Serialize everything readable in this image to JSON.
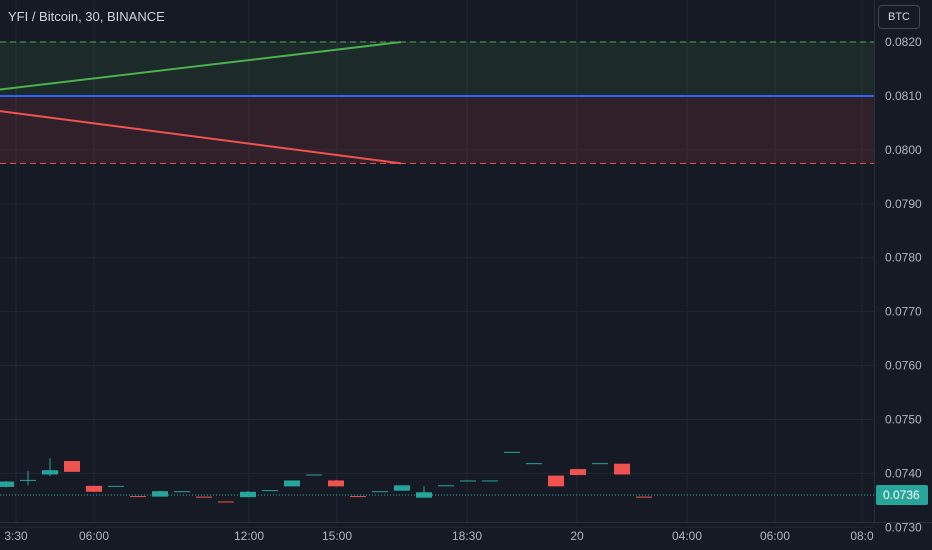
{
  "header": {
    "symbol_title": "YFI / Bitcoin, 30, BINANCE",
    "currency_button": "BTC"
  },
  "colors": {
    "background": "#161a25",
    "grid": "#232632",
    "up": "#26a69a",
    "down": "#ef5350",
    "target_line": "#4caf50",
    "stop_line": "#ef5350",
    "entry_line": "#2962ff",
    "axis_text": "#b2b5be"
  },
  "chart_data": {
    "type": "candlestick",
    "y_ticks": [
      "0.0820",
      "0.0810",
      "0.0800",
      "0.0790",
      "0.0780",
      "0.0770",
      "0.0760",
      "0.0750",
      "0.0740",
      "0.0730"
    ],
    "ylim": [
      0.07258,
      0.08278
    ],
    "x_ticks": [
      "3:30",
      "06:00",
      "12:00",
      "15:00",
      "18:30",
      "20",
      "04:00",
      "06:00",
      "08:0"
    ],
    "last_price": {
      "value": 0.0736,
      "label": "0.0736"
    },
    "position": {
      "entry_price": 0.081,
      "target_price": 0.082,
      "stop_price": 0.07975
    },
    "candles": [
      {
        "open": 0.07375,
        "close": 0.07385,
        "high": 0.07386,
        "low": 0.07374
      },
      {
        "open": 0.07387,
        "close": 0.07388,
        "high": 0.07405,
        "low": 0.07378
      },
      {
        "open": 0.07398,
        "close": 0.07406,
        "high": 0.07428,
        "low": 0.07395
      },
      {
        "open": 0.07423,
        "close": 0.07403,
        "high": 0.07423,
        "low": 0.07403
      },
      {
        "open": 0.07377,
        "close": 0.07366,
        "high": 0.07377,
        "low": 0.07366
      },
      {
        "open": 0.07376,
        "close": 0.07377,
        "high": 0.07377,
        "low": 0.07376
      },
      {
        "open": 0.07358,
        "close": 0.07357,
        "high": 0.07358,
        "low": 0.07357
      },
      {
        "open": 0.07357,
        "close": 0.07367,
        "high": 0.07368,
        "low": 0.07357
      },
      {
        "open": 0.07366,
        "close": 0.07367,
        "high": 0.07367,
        "low": 0.07366
      },
      {
        "open": 0.07357,
        "close": 0.07356,
        "high": 0.07357,
        "low": 0.07356
      },
      {
        "open": 0.07348,
        "close": 0.07347,
        "high": 0.07348,
        "low": 0.07347
      },
      {
        "open": 0.07356,
        "close": 0.07366,
        "high": 0.07367,
        "low": 0.07356
      },
      {
        "open": 0.07368,
        "close": 0.07369,
        "high": 0.07369,
        "low": 0.07368
      },
      {
        "open": 0.07376,
        "close": 0.07387,
        "high": 0.07387,
        "low": 0.07376
      },
      {
        "open": 0.07397,
        "close": 0.07398,
        "high": 0.07398,
        "low": 0.07397
      },
      {
        "open": 0.07387,
        "close": 0.07376,
        "high": 0.07388,
        "low": 0.07376
      },
      {
        "open": 0.07358,
        "close": 0.07357,
        "high": 0.07358,
        "low": 0.07357
      },
      {
        "open": 0.07366,
        "close": 0.07367,
        "high": 0.07367,
        "low": 0.07366
      },
      {
        "open": 0.07368,
        "close": 0.07378,
        "high": 0.07378,
        "low": 0.07368
      },
      {
        "open": 0.07355,
        "close": 0.07365,
        "high": 0.07376,
        "low": 0.07355
      },
      {
        "open": 0.07377,
        "close": 0.07378,
        "high": 0.07378,
        "low": 0.07377
      },
      {
        "open": 0.07386,
        "close": 0.07387,
        "high": 0.07387,
        "low": 0.07386
      },
      {
        "open": 0.07386,
        "close": 0.07387,
        "high": 0.07387,
        "low": 0.07386
      },
      {
        "open": 0.07439,
        "close": 0.0744,
        "high": 0.0744,
        "low": 0.07439
      },
      {
        "open": 0.07418,
        "close": 0.07419,
        "high": 0.07419,
        "low": 0.07418
      },
      {
        "open": 0.07396,
        "close": 0.07376,
        "high": 0.07396,
        "low": 0.07376
      },
      {
        "open": 0.07408,
        "close": 0.07397,
        "high": 0.07408,
        "low": 0.07397
      },
      {
        "open": 0.07418,
        "close": 0.07419,
        "high": 0.07419,
        "low": 0.07418
      },
      {
        "open": 0.07418,
        "close": 0.07398,
        "high": 0.07418,
        "low": 0.07398
      },
      {
        "open": 0.07357,
        "close": 0.07356,
        "high": 0.07357,
        "low": 0.07356
      }
    ]
  }
}
